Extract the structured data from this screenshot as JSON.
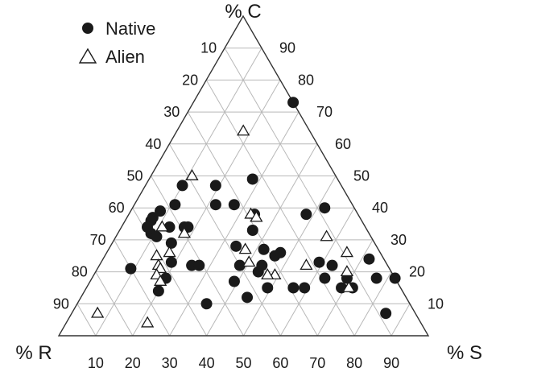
{
  "chart_data": {
    "type": "scatter",
    "plot_kind": "ternary",
    "axes": {
      "C": {
        "label": "% C",
        "ticks": [
          "10",
          "20",
          "30",
          "40",
          "50",
          "60",
          "70",
          "80",
          "90"
        ]
      },
      "R": {
        "label": "% R",
        "ticks": [
          "10",
          "20",
          "30",
          "40",
          "50",
          "60",
          "70",
          "80",
          "90"
        ]
      },
      "S": {
        "label": "% S",
        "ticks": [
          "10",
          "20",
          "30",
          "40",
          "50",
          "60",
          "70",
          "80",
          "90"
        ]
      }
    },
    "grid": true,
    "legend_position": "top-left",
    "series": [
      {
        "name": "Native",
        "marker": "filled-circle",
        "color": "#1a1a1a",
        "points": [
          {
            "C": 73,
            "R": 0,
            "S": 27
          },
          {
            "C": 47,
            "R": 43,
            "S": 10
          },
          {
            "C": 41,
            "R": 48,
            "S": 11
          },
          {
            "C": 39,
            "R": 53,
            "S": 8
          },
          {
            "C": 37,
            "R": 56,
            "S": 7
          },
          {
            "C": 36,
            "R": 57,
            "S": 7
          },
          {
            "C": 34,
            "R": 59,
            "S": 7
          },
          {
            "C": 34,
            "R": 53,
            "S": 13
          },
          {
            "C": 34,
            "R": 49,
            "S": 17
          },
          {
            "C": 34,
            "R": 48,
            "S": 18
          },
          {
            "C": 32,
            "R": 59,
            "S": 9
          },
          {
            "C": 31,
            "R": 58,
            "S": 11
          },
          {
            "C": 29,
            "R": 55,
            "S": 16
          },
          {
            "C": 21,
            "R": 70,
            "S": 9
          },
          {
            "C": 18,
            "R": 62,
            "S": 20
          },
          {
            "C": 14,
            "R": 66,
            "S": 20
          },
          {
            "C": 23,
            "R": 58,
            "S": 19
          },
          {
            "C": 22,
            "R": 53,
            "S": 25
          },
          {
            "C": 22,
            "R": 51,
            "S": 27
          },
          {
            "C": 10,
            "R": 55,
            "S": 35
          },
          {
            "C": 47,
            "R": 34,
            "S": 19
          },
          {
            "C": 41,
            "R": 32,
            "S": 27
          },
          {
            "C": 41,
            "R": 37,
            "S": 22
          },
          {
            "C": 49,
            "R": 23,
            "S": 28
          },
          {
            "C": 38,
            "R": 28,
            "S": 34
          },
          {
            "C": 28,
            "R": 38,
            "S": 34
          },
          {
            "C": 27,
            "R": 31,
            "S": 42
          },
          {
            "C": 22,
            "R": 40,
            "S": 38
          },
          {
            "C": 17,
            "R": 44,
            "S": 39
          },
          {
            "C": 12,
            "R": 43,
            "S": 45
          },
          {
            "C": 15,
            "R": 36,
            "S": 49
          },
          {
            "C": 20,
            "R": 36,
            "S": 44
          },
          {
            "C": 22,
            "R": 34,
            "S": 44
          },
          {
            "C": 15,
            "R": 29,
            "S": 56
          },
          {
            "C": 25,
            "R": 29,
            "S": 46
          },
          {
            "C": 26,
            "R": 27,
            "S": 47
          },
          {
            "C": 33,
            "R": 31,
            "S": 36
          },
          {
            "C": 15,
            "R": 26,
            "S": 59
          },
          {
            "C": 38,
            "R": 14,
            "S": 48
          },
          {
            "C": 40,
            "R": 8,
            "S": 52
          },
          {
            "C": 23,
            "R": 18,
            "S": 59
          },
          {
            "C": 22,
            "R": 15,
            "S": 63
          },
          {
            "C": 18,
            "R": 19,
            "S": 63
          },
          {
            "C": 18,
            "R": 13,
            "S": 69
          },
          {
            "C": 24,
            "R": 4,
            "S": 72
          },
          {
            "C": 18,
            "R": 5,
            "S": 77
          },
          {
            "C": 18,
            "R": 0,
            "S": 82
          },
          {
            "C": 15,
            "R": 16,
            "S": 69
          },
          {
            "C": 15,
            "R": 13,
            "S": 72
          },
          {
            "C": 7,
            "R": 8,
            "S": 85
          }
        ]
      },
      {
        "name": "Alien",
        "marker": "open-triangle",
        "color": "#1a1a1a",
        "points": [
          {
            "C": 64,
            "R": 18,
            "S": 18
          },
          {
            "C": 54,
            "R": 42,
            "S": 12
          },
          {
            "C": 38,
            "R": 29,
            "S": 33
          },
          {
            "C": 37,
            "R": 28,
            "S": 35
          },
          {
            "C": 34,
            "R": 55,
            "S": 11
          },
          {
            "C": 32,
            "R": 50,
            "S": 18
          },
          {
            "C": 31,
            "R": 12,
            "S": 57
          },
          {
            "C": 26,
            "R": 57,
            "S": 17
          },
          {
            "C": 27,
            "R": 36,
            "S": 37
          },
          {
            "C": 26,
            "R": 9,
            "S": 65
          },
          {
            "C": 25,
            "R": 61,
            "S": 14
          },
          {
            "C": 23,
            "R": 37,
            "S": 40
          },
          {
            "C": 22,
            "R": 62,
            "S": 16
          },
          {
            "C": 21,
            "R": 62,
            "S": 17
          },
          {
            "C": 19,
            "R": 32,
            "S": 49
          },
          {
            "C": 19,
            "R": 64,
            "S": 17
          },
          {
            "C": 19,
            "R": 34,
            "S": 47
          },
          {
            "C": 22,
            "R": 22,
            "S": 56
          },
          {
            "C": 20,
            "R": 12,
            "S": 68
          },
          {
            "C": 17,
            "R": 64,
            "S": 19
          },
          {
            "C": 15,
            "R": 14,
            "S": 71
          },
          {
            "C": 7,
            "R": 86,
            "S": 7
          },
          {
            "C": 4,
            "R": 74,
            "S": 22
          }
        ]
      }
    ]
  }
}
